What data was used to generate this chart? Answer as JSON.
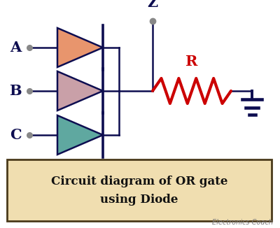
{
  "bg_color": "#ffffff",
  "circuit_color": "#0d0d50",
  "diode_A_color": "#e8956d",
  "diode_B_color": "#c9a0a8",
  "diode_C_color": "#5fa8a0",
  "resistor_color": "#cc0000",
  "ground_color": "#0d0d50",
  "label_color": "#0d0d50",
  "z_color": "#0d0d50",
  "r_color": "#cc0000",
  "node_color": "#888888",
  "caption_bg": "#f0deb0",
  "caption_border": "#4a3a1a",
  "caption_text_line1": "Circuit diagram of OR gate",
  "caption_text_line2": "using Diode",
  "caption_text_color": "#111111",
  "watermark": "Electronics Coach",
  "inputs": [
    "A",
    "B",
    "C"
  ],
  "output_label": "Z",
  "resistor_label": "R",
  "figsize": [
    4.0,
    3.26
  ],
  "dpi": 100
}
